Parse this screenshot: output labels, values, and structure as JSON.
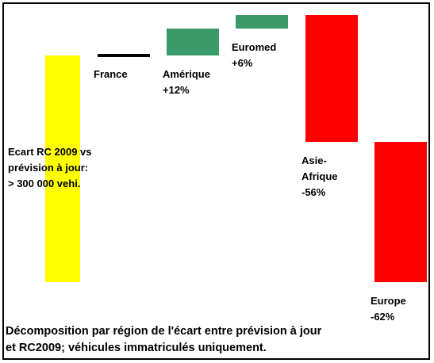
{
  "chart_data": {
    "type": "waterfall",
    "total": {
      "value": 100,
      "color": "#ffff00",
      "label_lines": [
        "Ecart RC 2009 vs",
        "prévision à jour:",
        "> 300 000 vehi."
      ]
    },
    "categories": [
      "France",
      "Amérique",
      "Euromed",
      "Asie-Afrique",
      "Europe"
    ],
    "values": [
      0,
      12,
      6,
      -56,
      -62
    ],
    "value_labels": [
      null,
      "+12%",
      "+6%",
      "-56%",
      "-62%"
    ],
    "colors": [
      "#000000",
      "#3a9a6a",
      "#3a9a6a",
      "#ff0000",
      "#ff0000"
    ],
    "footnote_lines": [
      "Décomposition par région de l'écart entre prévision à jour",
      "et RC2009; véhicules immatriculés uniquement."
    ]
  }
}
